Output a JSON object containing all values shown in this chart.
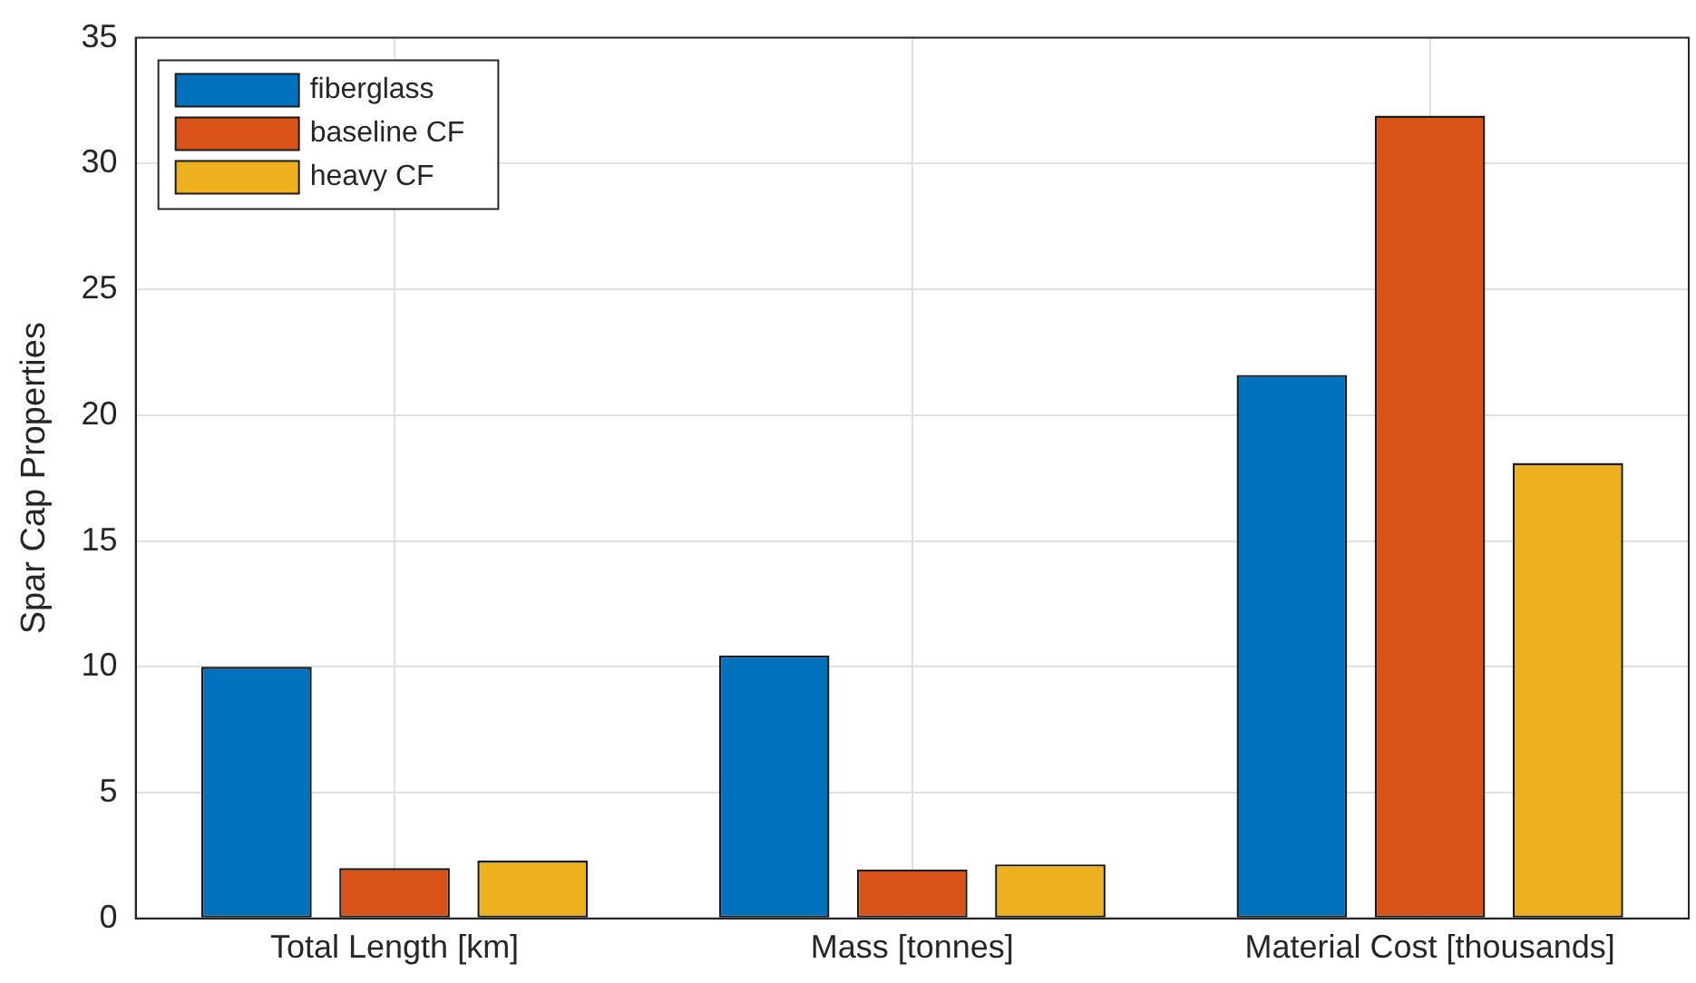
{
  "chart_data": {
    "type": "bar",
    "ylabel": "Spar Cap Properties",
    "categories": [
      "Total Length [km]",
      "Mass [tonnes]",
      "Material Cost [thousands]"
    ],
    "series": [
      {
        "name": "fiberglass",
        "color": "#0072bd",
        "values": [
          10,
          10.45,
          21.6
        ]
      },
      {
        "name": "baseline CF",
        "color": "#d95319",
        "values": [
          2,
          1.95,
          31.9
        ]
      },
      {
        "name": "heavy CF",
        "color": "#edb120",
        "values": [
          2.3,
          2.15,
          18.1
        ]
      }
    ],
    "ylim": [
      0,
      35
    ],
    "yticks": [
      0,
      5,
      10,
      15,
      20,
      25,
      30,
      35
    ],
    "grid": true,
    "legend": "top left"
  }
}
